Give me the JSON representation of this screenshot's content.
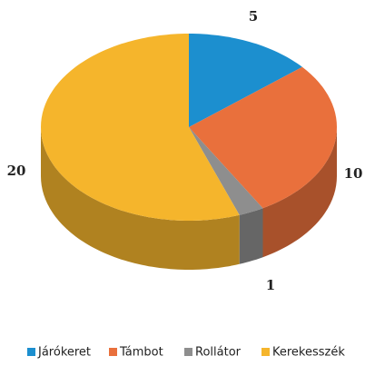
{
  "chart_data": {
    "type": "pie3d",
    "categories": [
      "Járókeret",
      "Támbot",
      "Rollátor",
      "Kerekesszék"
    ],
    "values": [
      5,
      10,
      1,
      20
    ],
    "colors": [
      "#1c8fcf",
      "#e9703c",
      "#8e8e8e",
      "#f5b52c"
    ],
    "legend": "bottom"
  }
}
